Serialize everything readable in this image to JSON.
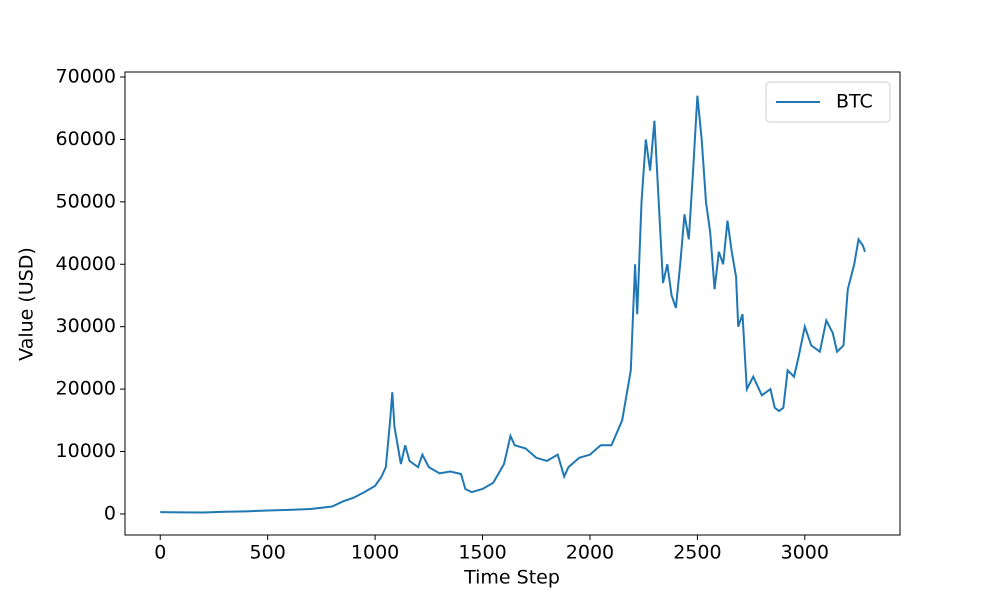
{
  "chart_data": {
    "type": "line",
    "xlabel": "Time Step",
    "ylabel": "Value (USD)",
    "x": [
      0,
      100,
      200,
      300,
      400,
      500,
      600,
      700,
      750,
      800,
      850,
      900,
      950,
      1000,
      1030,
      1050,
      1070,
      1080,
      1090,
      1100,
      1120,
      1140,
      1160,
      1200,
      1220,
      1250,
      1300,
      1350,
      1400,
      1420,
      1450,
      1500,
      1550,
      1600,
      1630,
      1650,
      1700,
      1750,
      1800,
      1850,
      1880,
      1900,
      1950,
      2000,
      2050,
      2100,
      2150,
      2170,
      2190,
      2210,
      2220,
      2240,
      2260,
      2280,
      2300,
      2320,
      2340,
      2360,
      2380,
      2400,
      2420,
      2440,
      2460,
      2480,
      2500,
      2520,
      2540,
      2560,
      2580,
      2600,
      2620,
      2640,
      2660,
      2680,
      2690,
      2710,
      2730,
      2760,
      2800,
      2840,
      2860,
      2880,
      2900,
      2920,
      2950,
      2970,
      3000,
      3030,
      3070,
      3100,
      3130,
      3150,
      3180,
      3200,
      3230,
      3250,
      3270,
      3280
    ],
    "series": [
      {
        "name": "BTC",
        "color": "#1f77b4",
        "values": [
          300,
          250,
          230,
          350,
          420,
          550,
          650,
          800,
          1000,
          1200,
          2000,
          2600,
          3500,
          4500,
          6000,
          7500,
          15000,
          19500,
          14000,
          12000,
          8000,
          11000,
          8500,
          7500,
          9500,
          7500,
          6500,
          6800,
          6400,
          4000,
          3500,
          4000,
          5000,
          8000,
          12500,
          11000,
          10500,
          9000,
          8500,
          9500,
          6000,
          7500,
          9000,
          9500,
          11000,
          11000,
          15000,
          19000,
          23000,
          40000,
          32000,
          50000,
          60000,
          55000,
          63000,
          50000,
          37000,
          40000,
          35000,
          33000,
          40000,
          48000,
          44000,
          55000,
          67000,
          60000,
          50000,
          45000,
          36000,
          42000,
          40000,
          47000,
          42000,
          38000,
          30000,
          32000,
          20000,
          22000,
          19000,
          20000,
          17000,
          16500,
          17000,
          23000,
          22000,
          25000,
          30000,
          27000,
          26000,
          31000,
          29000,
          26000,
          27000,
          36000,
          40000,
          44000,
          43000,
          42000
        ]
      }
    ],
    "xlim": [
      -164,
      3443
    ],
    "xticks": [
      0,
      500,
      1000,
      1500,
      2000,
      2500,
      3000
    ],
    "ylim": [
      -3370,
      70800
    ],
    "yticks": [
      0,
      10000,
      20000,
      30000,
      40000,
      50000,
      60000,
      70000
    ],
    "legend": "upper right"
  }
}
